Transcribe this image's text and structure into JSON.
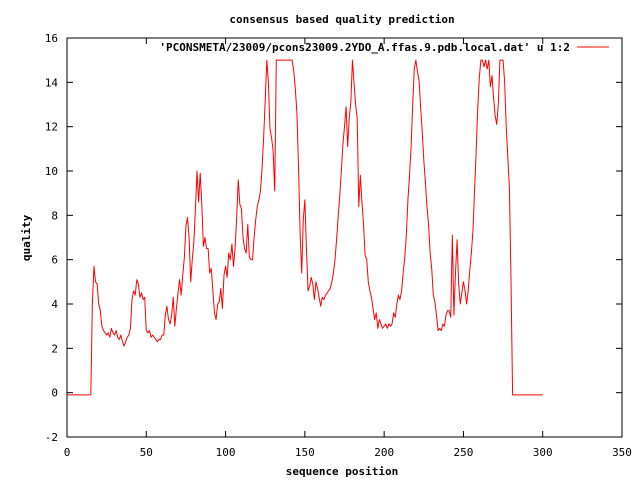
{
  "chart_data": {
    "type": "line",
    "title": "consensus based quality prediction",
    "xlabel": "sequence position",
    "ylabel": "quality",
    "xlim": [
      0,
      350
    ],
    "ylim": [
      -2,
      16
    ],
    "xticks": [
      0,
      50,
      100,
      150,
      200,
      250,
      300,
      350
    ],
    "yticks": [
      -2,
      0,
      2,
      4,
      6,
      8,
      10,
      12,
      14,
      16
    ],
    "grid": false,
    "legend_position": "top-right",
    "series": [
      {
        "name": "'PCONSMETA/23009/pcons23009.2YDO_A.ffas.9.pdb.local.dat' u 1:2",
        "color": "#ff0000",
        "points": [
          [
            0,
            -0.1
          ],
          [
            15,
            -0.1
          ],
          [
            16,
            4.0
          ],
          [
            17,
            5.7
          ],
          [
            18,
            5.0
          ],
          [
            19,
            4.9
          ],
          [
            20,
            4.0
          ],
          [
            21,
            3.7
          ],
          [
            22,
            3.0
          ],
          [
            23,
            2.8
          ],
          [
            24,
            2.7
          ],
          [
            25,
            2.6
          ],
          [
            26,
            2.7
          ],
          [
            27,
            2.5
          ],
          [
            28,
            2.9
          ],
          [
            29,
            2.7
          ],
          [
            30,
            2.6
          ],
          [
            31,
            2.8
          ],
          [
            32,
            2.5
          ],
          [
            33,
            2.4
          ],
          [
            34,
            2.6
          ],
          [
            35,
            2.3
          ],
          [
            36,
            2.1
          ],
          [
            37,
            2.3
          ],
          [
            38,
            2.5
          ],
          [
            39,
            2.6
          ],
          [
            40,
            2.9
          ],
          [
            41,
            4.2
          ],
          [
            42,
            4.6
          ],
          [
            43,
            4.4
          ],
          [
            44,
            5.1
          ],
          [
            45,
            4.9
          ],
          [
            46,
            4.3
          ],
          [
            47,
            4.5
          ],
          [
            48,
            4.2
          ],
          [
            49,
            4.3
          ],
          [
            50,
            2.8
          ],
          [
            51,
            2.7
          ],
          [
            52,
            2.8
          ],
          [
            53,
            2.5
          ],
          [
            54,
            2.6
          ],
          [
            55,
            2.5
          ],
          [
            56,
            2.4
          ],
          [
            57,
            2.3
          ],
          [
            58,
            2.4
          ],
          [
            59,
            2.4
          ],
          [
            60,
            2.6
          ],
          [
            61,
            2.6
          ],
          [
            62,
            3.5
          ],
          [
            63,
            3.9
          ],
          [
            64,
            3.3
          ],
          [
            65,
            3.1
          ],
          [
            66,
            3.5
          ],
          [
            67,
            4.3
          ],
          [
            68,
            3.0
          ],
          [
            69,
            3.8
          ],
          [
            70,
            4.5
          ],
          [
            71,
            5.1
          ],
          [
            72,
            4.4
          ],
          [
            73,
            5.3
          ],
          [
            74,
            6.1
          ],
          [
            75,
            7.5
          ],
          [
            76,
            7.9
          ],
          [
            77,
            7.0
          ],
          [
            78,
            5.0
          ],
          [
            79,
            6.0
          ],
          [
            80,
            6.8
          ],
          [
            81,
            8.3
          ],
          [
            82,
            10.0
          ],
          [
            83,
            8.6
          ],
          [
            84,
            9.9
          ],
          [
            85,
            8.5
          ],
          [
            86,
            6.6
          ],
          [
            87,
            7.0
          ],
          [
            88,
            6.5
          ],
          [
            89,
            6.5
          ],
          [
            90,
            5.4
          ],
          [
            91,
            5.6
          ],
          [
            92,
            4.6
          ],
          [
            93,
            3.6
          ],
          [
            94,
            3.3
          ],
          [
            95,
            4.0
          ],
          [
            96,
            4.1
          ],
          [
            97,
            4.7
          ],
          [
            98,
            3.8
          ],
          [
            99,
            5.3
          ],
          [
            100,
            5.7
          ],
          [
            101,
            5.2
          ],
          [
            102,
            6.3
          ],
          [
            103,
            6.0
          ],
          [
            104,
            6.7
          ],
          [
            105,
            5.7
          ],
          [
            106,
            6.5
          ],
          [
            107,
            7.9
          ],
          [
            108,
            9.6
          ],
          [
            109,
            8.5
          ],
          [
            110,
            8.3
          ],
          [
            111,
            7.0
          ],
          [
            112,
            6.5
          ],
          [
            113,
            6.3
          ],
          [
            114,
            7.6
          ],
          [
            115,
            6.1
          ],
          [
            116,
            6.0
          ],
          [
            117,
            6.0
          ],
          [
            118,
            7.0
          ],
          [
            119,
            7.8
          ],
          [
            120,
            8.4
          ],
          [
            121,
            8.7
          ],
          [
            122,
            9.1
          ],
          [
            123,
            10.1
          ],
          [
            124,
            11.5
          ],
          [
            125,
            13.2
          ],
          [
            126,
            15.0
          ],
          [
            127,
            14.0
          ],
          [
            128,
            11.9
          ],
          [
            129,
            11.5
          ],
          [
            130,
            10.9
          ],
          [
            131,
            9.1
          ],
          [
            132,
            15.0
          ],
          [
            133,
            15.0
          ],
          [
            134,
            15.0
          ],
          [
            135,
            15.0
          ],
          [
            136,
            15.0
          ],
          [
            137,
            15.0
          ],
          [
            138,
            15.0
          ],
          [
            139,
            15.0
          ],
          [
            140,
            15.0
          ],
          [
            141,
            15.0
          ],
          [
            142,
            15.0
          ],
          [
            143,
            14.5
          ],
          [
            144,
            13.7
          ],
          [
            145,
            12.6
          ],
          [
            146,
            10.2
          ],
          [
            147,
            7.2
          ],
          [
            148,
            5.4
          ],
          [
            149,
            7.8
          ],
          [
            150,
            8.7
          ],
          [
            151,
            6.5
          ],
          [
            152,
            4.6
          ],
          [
            153,
            4.8
          ],
          [
            154,
            5.2
          ],
          [
            155,
            4.9
          ],
          [
            156,
            4.2
          ],
          [
            157,
            5.0
          ],
          [
            158,
            4.7
          ],
          [
            159,
            4.3
          ],
          [
            160,
            3.9
          ],
          [
            161,
            4.3
          ],
          [
            162,
            4.2
          ],
          [
            163,
            4.4
          ],
          [
            164,
            4.5
          ],
          [
            165,
            4.6
          ],
          [
            166,
            4.7
          ],
          [
            167,
            5.0
          ],
          [
            168,
            5.4
          ],
          [
            169,
            6.0
          ],
          [
            170,
            6.9
          ],
          [
            171,
            7.9
          ],
          [
            172,
            8.9
          ],
          [
            173,
            10.0
          ],
          [
            174,
            11.2
          ],
          [
            175,
            12.0
          ],
          [
            176,
            12.9
          ],
          [
            177,
            11.1
          ],
          [
            178,
            12.4
          ],
          [
            179,
            13.1
          ],
          [
            180,
            15.0
          ],
          [
            181,
            14.0
          ],
          [
            182,
            13.0
          ],
          [
            183,
            12.4
          ],
          [
            184,
            8.4
          ],
          [
            185,
            9.8
          ],
          [
            186,
            8.6
          ],
          [
            187,
            7.6
          ],
          [
            188,
            6.2
          ],
          [
            189,
            6.0
          ],
          [
            190,
            5.0
          ],
          [
            191,
            4.6
          ],
          [
            192,
            4.3
          ],
          [
            193,
            3.8
          ],
          [
            194,
            3.3
          ],
          [
            195,
            3.6
          ],
          [
            196,
            2.9
          ],
          [
            197,
            3.3
          ],
          [
            198,
            3.1
          ],
          [
            199,
            2.9
          ],
          [
            200,
            3.0
          ],
          [
            201,
            3.1
          ],
          [
            202,
            2.9
          ],
          [
            203,
            3.1
          ],
          [
            204,
            3.0
          ],
          [
            205,
            3.1
          ],
          [
            206,
            3.6
          ],
          [
            207,
            3.4
          ],
          [
            208,
            4.0
          ],
          [
            209,
            4.4
          ],
          [
            210,
            4.2
          ],
          [
            211,
            4.6
          ],
          [
            212,
            5.4
          ],
          [
            213,
            6.1
          ],
          [
            214,
            7.1
          ],
          [
            215,
            8.7
          ],
          [
            216,
            9.8
          ],
          [
            217,
            11.1
          ],
          [
            218,
            13.0
          ],
          [
            219,
            14.6
          ],
          [
            220,
            15.0
          ],
          [
            221,
            14.5
          ],
          [
            222,
            14.1
          ],
          [
            223,
            12.9
          ],
          [
            224,
            11.8
          ],
          [
            225,
            10.5
          ],
          [
            226,
            9.5
          ],
          [
            227,
            8.4
          ],
          [
            228,
            7.6
          ],
          [
            229,
            6.3
          ],
          [
            230,
            5.6
          ],
          [
            231,
            4.4
          ],
          [
            232,
            4.1
          ],
          [
            233,
            3.5
          ],
          [
            234,
            2.8
          ],
          [
            235,
            2.9
          ],
          [
            236,
            2.8
          ],
          [
            237,
            3.1
          ],
          [
            238,
            3.0
          ],
          [
            239,
            3.5
          ],
          [
            240,
            3.7
          ],
          [
            241,
            3.7
          ],
          [
            242,
            3.4
          ],
          [
            243,
            7.1
          ],
          [
            244,
            3.5
          ],
          [
            245,
            5.4
          ],
          [
            246,
            6.9
          ],
          [
            247,
            4.9
          ],
          [
            248,
            4.0
          ],
          [
            249,
            4.5
          ],
          [
            250,
            5.0
          ],
          [
            251,
            4.6
          ],
          [
            252,
            4.0
          ],
          [
            253,
            4.6
          ],
          [
            254,
            5.5
          ],
          [
            255,
            6.3
          ],
          [
            256,
            7.3
          ],
          [
            257,
            9.1
          ],
          [
            258,
            10.8
          ],
          [
            259,
            12.8
          ],
          [
            260,
            14.2
          ],
          [
            261,
            15.0
          ],
          [
            262,
            15.0
          ],
          [
            263,
            14.7
          ],
          [
            264,
            15.0
          ],
          [
            265,
            14.6
          ],
          [
            266,
            15.0
          ],
          [
            267,
            13.8
          ],
          [
            268,
            14.3
          ],
          [
            269,
            13.3
          ],
          [
            270,
            12.5
          ],
          [
            271,
            12.1
          ],
          [
            272,
            13.0
          ],
          [
            273,
            15.0
          ],
          [
            274,
            15.0
          ],
          [
            275,
            15.0
          ],
          [
            276,
            14.0
          ],
          [
            277,
            12.0
          ],
          [
            278,
            10.6
          ],
          [
            279,
            9.2
          ],
          [
            280,
            5.1
          ],
          [
            281,
            -0.1
          ],
          [
            300,
            -0.1
          ]
        ]
      }
    ]
  }
}
